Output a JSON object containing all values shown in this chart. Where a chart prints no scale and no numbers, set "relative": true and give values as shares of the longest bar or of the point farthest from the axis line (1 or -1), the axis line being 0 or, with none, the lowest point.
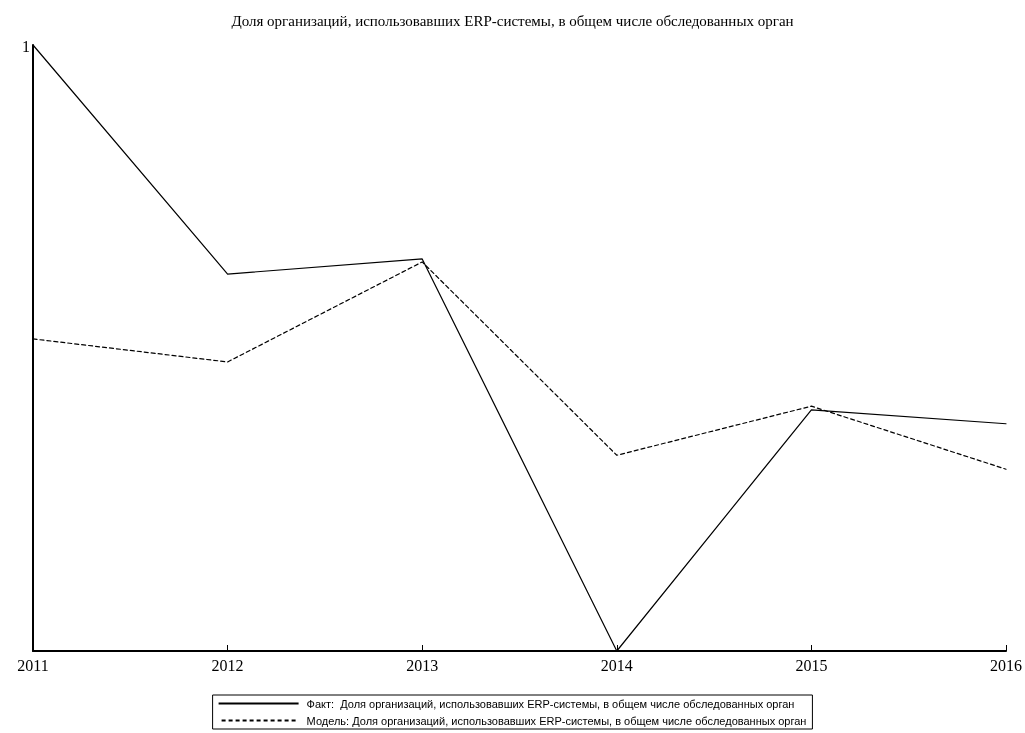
{
  "chart_data": {
    "type": "line",
    "title": "Доля организаций, использовавших ERP-системы, в общем числе обследованных орган",
    "categories": [
      "2011",
      "2012",
      "2013",
      "2014",
      "2015",
      "2016"
    ],
    "relative": true,
    "marker": "none",
    "legend": "bottom",
    "annotations": [
      "1"
    ],
    "series": [
      {
        "name": "Факт:  Доля организаций, использовавших ERP-системы, в общем числе обследованных орган",
        "color": "#000000",
        "line_style": "solid",
        "values": [
          1,
          0.622,
          0.647,
          0,
          0.398,
          0.375
        ]
      },
      {
        "name": "Модель: Доля организаций, использовавших ERP-системы, в общем числе обследованных орган",
        "color": "#000000",
        "line_style": "dashed",
        "values": [
          0.515,
          0.477,
          0.642,
          0.323,
          0.404,
          0.3
        ]
      }
    ]
  }
}
